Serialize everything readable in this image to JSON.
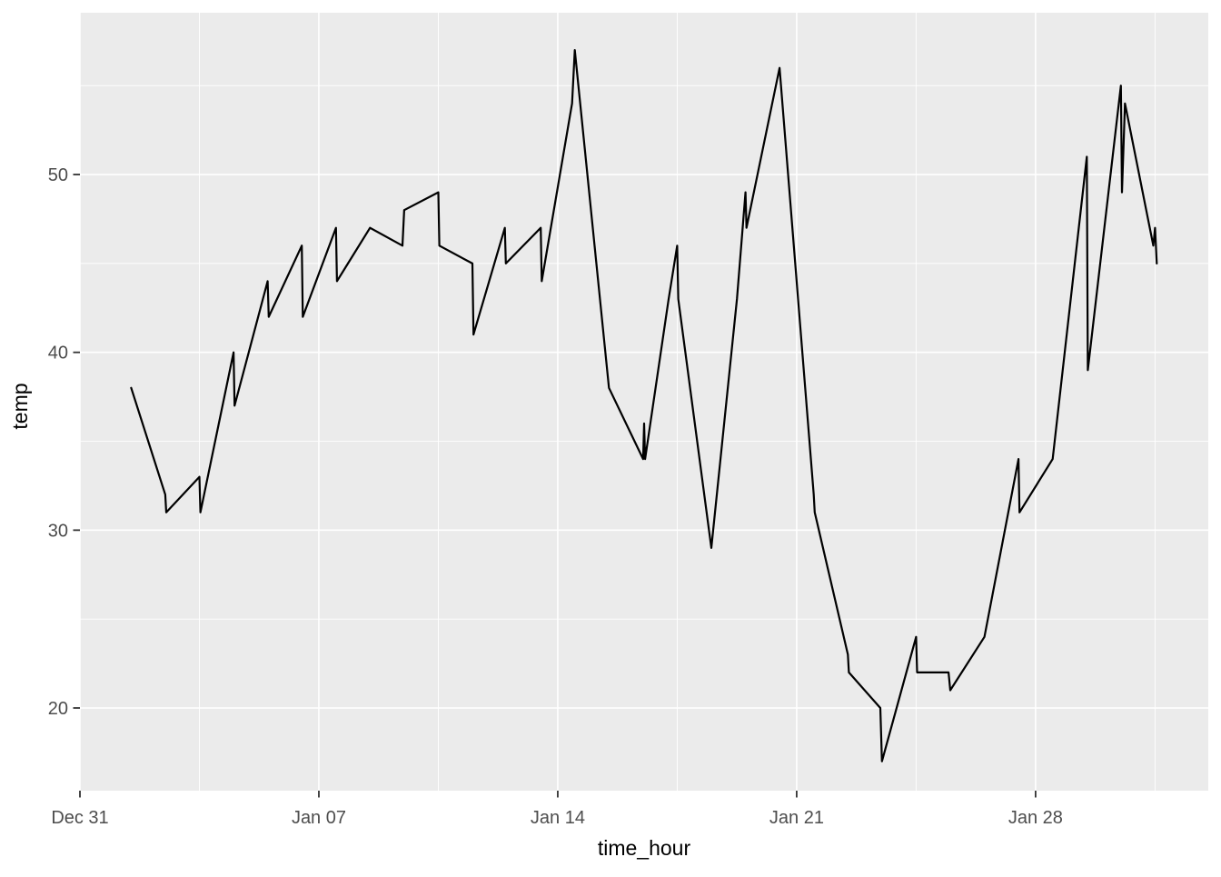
{
  "colors": {
    "page_bg": "#FFFFFF",
    "panel_bg": "#EBEBEB",
    "gridline": "#FFFFFF",
    "series_line": "#000000",
    "tick_label": "#4D4D4D",
    "axis_title": "#000000",
    "tick_mark": "#333333"
  },
  "chart_data": {
    "type": "line",
    "title": "",
    "xlabel": "time_hour",
    "ylabel": "temp",
    "x_unit": "days since Dec 31 00:00",
    "x_domain_days": [
      0,
      33.06
    ],
    "y_domain": [
      15.35,
      59.1
    ],
    "grid": true,
    "legend": "none",
    "x_ticks": [
      {
        "label": "Dec 31",
        "day": 0
      },
      {
        "label": "Jan 07",
        "day": 7
      },
      {
        "label": "Jan 14",
        "day": 14
      },
      {
        "label": "Jan 21",
        "day": 21
      },
      {
        "label": "Jan 28",
        "day": 28
      }
    ],
    "x_minor_ticks_days": [
      3.5,
      10.5,
      17.5,
      24.5,
      31.5
    ],
    "y_ticks": [
      {
        "label": "20",
        "value": 20
      },
      {
        "label": "30",
        "value": 30
      },
      {
        "label": "40",
        "value": 40
      },
      {
        "label": "50",
        "value": 50
      }
    ],
    "y_minor_ticks": [
      25,
      35,
      45,
      55
    ],
    "series": [
      {
        "name": "temp",
        "color": "#000000",
        "points": [
          [
            1.5,
            38
          ],
          [
            2.5,
            32
          ],
          [
            2.53,
            31
          ],
          [
            3.5,
            33
          ],
          [
            3.53,
            31
          ],
          [
            4.5,
            40
          ],
          [
            4.53,
            37
          ],
          [
            5.5,
            44
          ],
          [
            5.53,
            42
          ],
          [
            6.5,
            46
          ],
          [
            6.53,
            42
          ],
          [
            7.5,
            47
          ],
          [
            7.53,
            44
          ],
          [
            8.5,
            47
          ],
          [
            9.45,
            46
          ],
          [
            9.5,
            48
          ],
          [
            10.5,
            49
          ],
          [
            10.53,
            46
          ],
          [
            11.5,
            45
          ],
          [
            11.53,
            41
          ],
          [
            12.45,
            47
          ],
          [
            12.48,
            45
          ],
          [
            13.5,
            47
          ],
          [
            13.53,
            44
          ],
          [
            14.42,
            54
          ],
          [
            14.5,
            57
          ],
          [
            15.5,
            38
          ],
          [
            16.5,
            34
          ],
          [
            16.53,
            36
          ],
          [
            16.56,
            34
          ],
          [
            17.25,
            43
          ],
          [
            17.5,
            46
          ],
          [
            17.53,
            43
          ],
          [
            18.5,
            29
          ],
          [
            19.25,
            43
          ],
          [
            19.5,
            49
          ],
          [
            19.53,
            47
          ],
          [
            20.5,
            56
          ],
          [
            21.5,
            32
          ],
          [
            21.53,
            31
          ],
          [
            22.5,
            23
          ],
          [
            22.53,
            22
          ],
          [
            23.45,
            20
          ],
          [
            23.5,
            17
          ],
          [
            24.5,
            24
          ],
          [
            24.53,
            22
          ],
          [
            25.45,
            22
          ],
          [
            25.5,
            21
          ],
          [
            26.5,
            24
          ],
          [
            27.5,
            34
          ],
          [
            27.53,
            31
          ],
          [
            28.5,
            34
          ],
          [
            29.5,
            51
          ],
          [
            29.53,
            39
          ],
          [
            30.5,
            55
          ],
          [
            30.53,
            49
          ],
          [
            30.62,
            54
          ],
          [
            31.45,
            46
          ],
          [
            31.5,
            47
          ],
          [
            31.55,
            45
          ]
        ]
      }
    ]
  }
}
